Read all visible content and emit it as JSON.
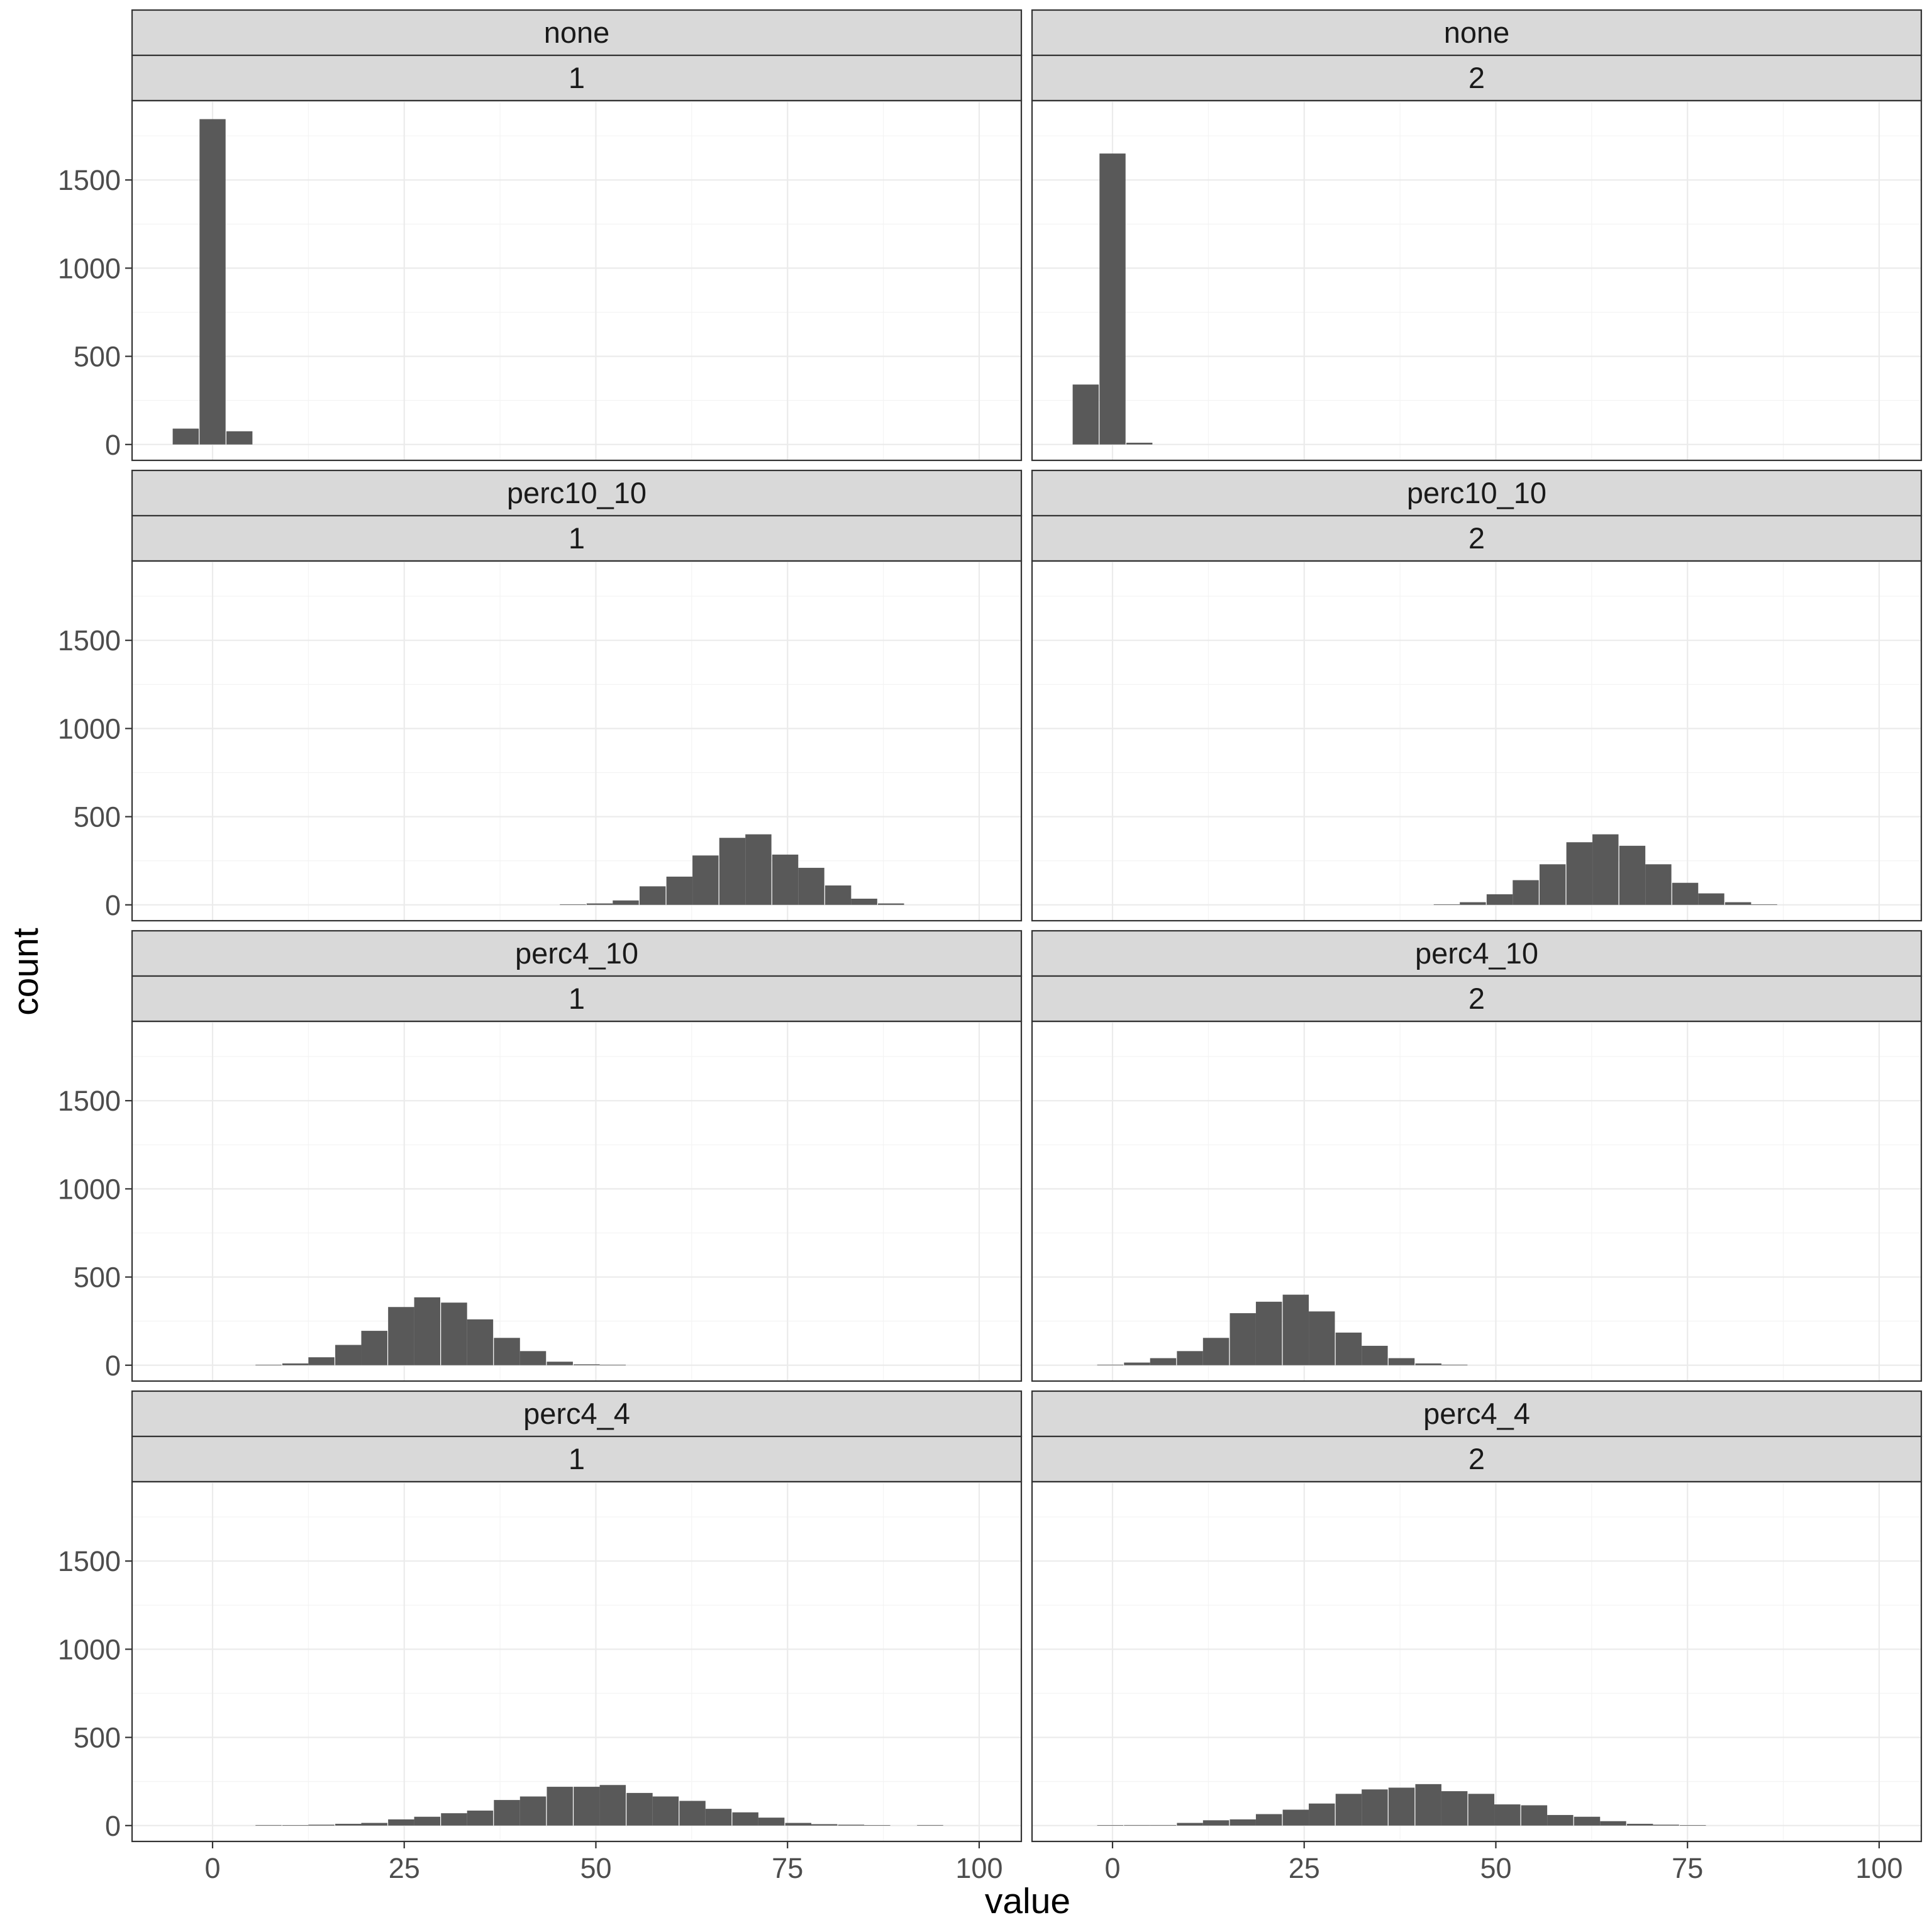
{
  "chart_data": {
    "type": "histogram",
    "xlabel": "value",
    "ylabel": "count",
    "xlim": [
      -10.5,
      105.5
    ],
    "ylim": [
      -90,
      1950
    ],
    "x_ticks": [
      0,
      25,
      50,
      75,
      100
    ],
    "y_ticks": [
      0,
      500,
      1000,
      1500
    ],
    "grid": true,
    "bar_color": "#595959",
    "strip_color": "#d9d9d9",
    "bin_width": 3.4,
    "panels": [
      {
        "strip_top": "none",
        "strip_bottom": "1",
        "bins": [
          {
            "x": -3.5,
            "count": 90
          },
          {
            "x": 0,
            "count": 1845
          },
          {
            "x": 3.5,
            "count": 75
          }
        ]
      },
      {
        "strip_top": "none",
        "strip_bottom": "2",
        "bins": [
          {
            "x": -3.5,
            "count": 340
          },
          {
            "x": 0,
            "count": 1650
          },
          {
            "x": 3.5,
            "count": 10
          }
        ]
      },
      {
        "strip_top": "perc10_10",
        "strip_bottom": "1",
        "bins": [
          {
            "x": 47,
            "count": 3
          },
          {
            "x": 50.5,
            "count": 8
          },
          {
            "x": 53.9,
            "count": 25
          },
          {
            "x": 57.4,
            "count": 105
          },
          {
            "x": 60.9,
            "count": 160
          },
          {
            "x": 64.3,
            "count": 280
          },
          {
            "x": 67.8,
            "count": 380
          },
          {
            "x": 71.2,
            "count": 400
          },
          {
            "x": 74.7,
            "count": 285
          },
          {
            "x": 78.1,
            "count": 210
          },
          {
            "x": 81.6,
            "count": 110
          },
          {
            "x": 85.0,
            "count": 35
          },
          {
            "x": 88.5,
            "count": 8
          }
        ]
      },
      {
        "strip_top": "perc10_10",
        "strip_bottom": "2",
        "bins": [
          {
            "x": 43.6,
            "count": 3
          },
          {
            "x": 47.0,
            "count": 15
          },
          {
            "x": 50.5,
            "count": 60
          },
          {
            "x": 53.9,
            "count": 140
          },
          {
            "x": 57.4,
            "count": 230
          },
          {
            "x": 60.9,
            "count": 355
          },
          {
            "x": 64.3,
            "count": 400
          },
          {
            "x": 67.8,
            "count": 335
          },
          {
            "x": 71.2,
            "count": 230
          },
          {
            "x": 74.7,
            "count": 125
          },
          {
            "x": 78.1,
            "count": 65
          },
          {
            "x": 81.6,
            "count": 15
          },
          {
            "x": 85.0,
            "count": 3
          }
        ]
      },
      {
        "strip_top": "perc4_10",
        "strip_bottom": "1",
        "bins": [
          {
            "x": 7.3,
            "count": 2
          },
          {
            "x": 10.8,
            "count": 10
          },
          {
            "x": 14.2,
            "count": 45
          },
          {
            "x": 17.7,
            "count": 115
          },
          {
            "x": 21.1,
            "count": 195
          },
          {
            "x": 24.6,
            "count": 330
          },
          {
            "x": 28.0,
            "count": 385
          },
          {
            "x": 31.5,
            "count": 355
          },
          {
            "x": 34.9,
            "count": 260
          },
          {
            "x": 38.4,
            "count": 155
          },
          {
            "x": 41.8,
            "count": 80
          },
          {
            "x": 45.3,
            "count": 20
          },
          {
            "x": 48.8,
            "count": 5
          },
          {
            "x": 52.2,
            "count": 2
          }
        ]
      },
      {
        "strip_top": "perc4_10",
        "strip_bottom": "2",
        "bins": [
          {
            "x": -0.3,
            "count": 3
          },
          {
            "x": 3.2,
            "count": 15
          },
          {
            "x": 6.6,
            "count": 40
          },
          {
            "x": 10.1,
            "count": 80
          },
          {
            "x": 13.5,
            "count": 155
          },
          {
            "x": 17.0,
            "count": 295
          },
          {
            "x": 20.4,
            "count": 360
          },
          {
            "x": 23.9,
            "count": 400
          },
          {
            "x": 27.3,
            "count": 305
          },
          {
            "x": 30.8,
            "count": 185
          },
          {
            "x": 34.2,
            "count": 110
          },
          {
            "x": 37.7,
            "count": 40
          },
          {
            "x": 41.2,
            "count": 10
          },
          {
            "x": 44.6,
            "count": 3
          }
        ]
      },
      {
        "strip_top": "perc4_4",
        "strip_bottom": "1",
        "bins": [
          {
            "x": 7.3,
            "count": 3
          },
          {
            "x": 10.8,
            "count": 2
          },
          {
            "x": 14.2,
            "count": 5
          },
          {
            "x": 17.7,
            "count": 10
          },
          {
            "x": 21.1,
            "count": 15
          },
          {
            "x": 24.6,
            "count": 35
          },
          {
            "x": 28.0,
            "count": 50
          },
          {
            "x": 31.5,
            "count": 70
          },
          {
            "x": 34.9,
            "count": 85
          },
          {
            "x": 38.4,
            "count": 145
          },
          {
            "x": 41.8,
            "count": 165
          },
          {
            "x": 45.3,
            "count": 220
          },
          {
            "x": 48.8,
            "count": 220
          },
          {
            "x": 52.2,
            "count": 230
          },
          {
            "x": 55.7,
            "count": 185
          },
          {
            "x": 59.1,
            "count": 165
          },
          {
            "x": 62.6,
            "count": 140
          },
          {
            "x": 66.0,
            "count": 95
          },
          {
            "x": 69.5,
            "count": 75
          },
          {
            "x": 72.9,
            "count": 45
          },
          {
            "x": 76.4,
            "count": 15
          },
          {
            "x": 79.8,
            "count": 8
          },
          {
            "x": 83.3,
            "count": 5
          },
          {
            "x": 86.7,
            "count": 2
          },
          {
            "x": 93.6,
            "count": 3
          }
        ]
      },
      {
        "strip_top": "perc4_4",
        "strip_bottom": "2",
        "bins": [
          {
            "x": -0.3,
            "count": 2
          },
          {
            "x": 3.2,
            "count": 3
          },
          {
            "x": 6.6,
            "count": 3
          },
          {
            "x": 10.1,
            "count": 15
          },
          {
            "x": 13.5,
            "count": 30
          },
          {
            "x": 17.0,
            "count": 35
          },
          {
            "x": 20.4,
            "count": 65
          },
          {
            "x": 23.9,
            "count": 90
          },
          {
            "x": 27.3,
            "count": 125
          },
          {
            "x": 30.8,
            "count": 180
          },
          {
            "x": 34.2,
            "count": 205
          },
          {
            "x": 37.7,
            "count": 215
          },
          {
            "x": 41.2,
            "count": 235
          },
          {
            "x": 44.6,
            "count": 195
          },
          {
            "x": 48.1,
            "count": 180
          },
          {
            "x": 51.5,
            "count": 120
          },
          {
            "x": 55.0,
            "count": 115
          },
          {
            "x": 58.4,
            "count": 60
          },
          {
            "x": 61.9,
            "count": 50
          },
          {
            "x": 65.3,
            "count": 25
          },
          {
            "x": 68.8,
            "count": 10
          },
          {
            "x": 72.2,
            "count": 5
          },
          {
            "x": 75.7,
            "count": 2
          }
        ]
      }
    ]
  }
}
